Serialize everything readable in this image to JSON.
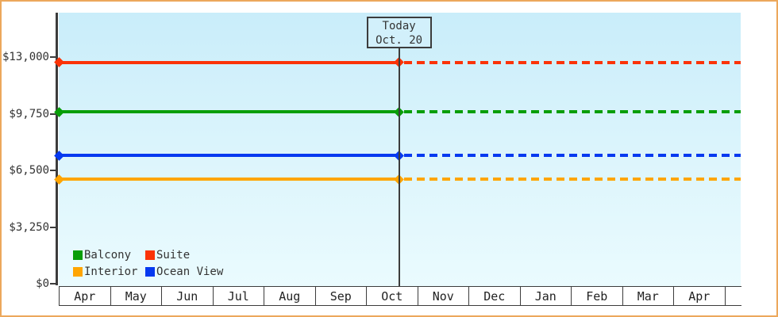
{
  "window": {
    "border_color": "#eca85c",
    "background_color": "#ffffff",
    "plot_background_top": "#c9edfa",
    "plot_background_bottom": "#eafbfe",
    "axis_color": "#3c3c3c",
    "text_color": "#333333"
  },
  "today_marker": {
    "title": "Today",
    "date": "Oct. 20",
    "month_index": 6,
    "day": 20,
    "days_in_month": 31
  },
  "chart_data": {
    "type": "line",
    "title": "",
    "description": "Cruise cabin price tracker: flat price lines per cabin category, solid up to today (Oct. 20), dashed projection to the right of today",
    "x_axis": {
      "categories": [
        "Apr",
        "May",
        "Jun",
        "Jul",
        "Aug",
        "Sep",
        "Oct",
        "Nov",
        "Dec",
        "Jan",
        "Feb",
        "Mar",
        "Apr"
      ]
    },
    "y_axis": {
      "ticks": [
        {
          "label": "$13,000",
          "value": 13000
        },
        {
          "label": "$9,750",
          "value": 9750
        },
        {
          "label": "$6,500",
          "value": 6500
        },
        {
          "label": "$3,250",
          "value": 3250
        },
        {
          "label": "$0",
          "value": 0
        }
      ],
      "ylim": [
        0,
        15500
      ]
    },
    "series": [
      {
        "name": "Balcony",
        "color": "#089e08",
        "value": 9850
      },
      {
        "name": "Suite",
        "color": "#fb3307",
        "value": 12700
      },
      {
        "name": "Interior",
        "color": "#ffa502",
        "value": 6000
      },
      {
        "name": "Ocean View",
        "color": "#0639f0",
        "value": 7350
      }
    ],
    "legend_position": "bottom-left",
    "grid": false
  }
}
